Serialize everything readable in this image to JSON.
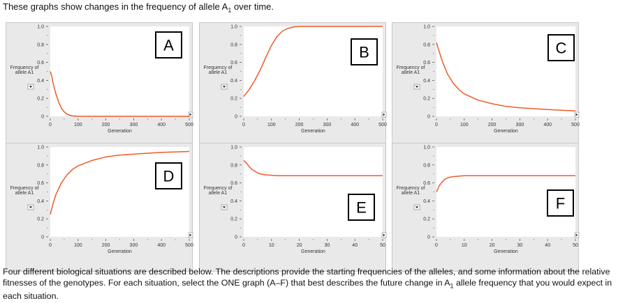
{
  "intro": {
    "pre": "These graphs show changes in the frequency of allele A",
    "sub": "1",
    "post": " over time."
  },
  "outro": {
    "pre": "Four different biological situations are described below. The descriptions provide the starting frequencies of the alleles, and some information about the relative fitnesses of the genotypes. For each situation, select the ONE graph (A–F) that best describes the future change in A",
    "sub": "1",
    "post": " allele frequency that you would expect in each situation."
  },
  "colors": {
    "curve": "#ef5a28",
    "panel_bg": "#e9e9e9",
    "plot_bg": "#ffffff"
  },
  "chart_data": [
    {
      "type": "line",
      "panel_label": "A",
      "ylabel": "Frequency of allele A1",
      "xlabel": "Generation",
      "xlim": [
        0,
        500
      ],
      "ylim": [
        0,
        1
      ],
      "xticks": [
        0,
        100,
        200,
        300,
        400,
        500
      ],
      "yticks": [
        0,
        0.2,
        0.4,
        0.6,
        0.8,
        1.0
      ],
      "ytick_labels": [
        "0",
        "0.2",
        "0.4",
        "0.6",
        "0.8",
        "1.0"
      ],
      "series": [
        {
          "x": [
            0,
            5,
            10,
            20,
            30,
            40,
            50,
            60,
            70,
            80,
            100,
            150,
            200,
            300,
            400,
            500
          ],
          "y": [
            0.5,
            0.45,
            0.37,
            0.25,
            0.16,
            0.09,
            0.05,
            0.025,
            0.012,
            0.005,
            0.001,
            0,
            0,
            0,
            0,
            0
          ]
        }
      ]
    },
    {
      "type": "line",
      "panel_label": "B",
      "ylabel": "Frequency of allele A1",
      "xlabel": "Generation",
      "xlim": [
        0,
        500
      ],
      "ylim": [
        0,
        1
      ],
      "xticks": [
        0,
        100,
        200,
        300,
        400,
        500
      ],
      "yticks": [
        0,
        0.2,
        0.4,
        0.6,
        0.8,
        1.0
      ],
      "ytick_labels": [
        "0",
        "0.2",
        "0.4",
        "0.6",
        "0.8",
        "1.0"
      ],
      "series": [
        {
          "x": [
            0,
            20,
            40,
            60,
            80,
            100,
            120,
            140,
            160,
            180,
            200,
            250,
            300,
            400,
            500
          ],
          "y": [
            0.22,
            0.3,
            0.4,
            0.52,
            0.66,
            0.79,
            0.89,
            0.95,
            0.98,
            0.995,
            1.0,
            1.0,
            1.0,
            1.0,
            1.0
          ]
        }
      ]
    },
    {
      "type": "line",
      "panel_label": "C",
      "ylabel": "Frequency of allele A1",
      "xlabel": "Generation",
      "xlim": [
        0,
        500
      ],
      "ylim": [
        0,
        1
      ],
      "xticks": [
        0,
        100,
        200,
        300,
        400,
        500
      ],
      "yticks": [
        0,
        0.2,
        0.4,
        0.6,
        0.8,
        1.0
      ],
      "ytick_labels": [
        "0",
        "0.2",
        "0.4",
        "0.6",
        "0.8",
        "1.0"
      ],
      "series": [
        {
          "x": [
            0,
            10,
            20,
            40,
            60,
            80,
            100,
            150,
            200,
            250,
            300,
            350,
            400,
            450,
            500
          ],
          "y": [
            0.82,
            0.72,
            0.62,
            0.47,
            0.37,
            0.3,
            0.25,
            0.18,
            0.14,
            0.11,
            0.095,
            0.085,
            0.075,
            0.068,
            0.06
          ]
        }
      ]
    },
    {
      "type": "line",
      "panel_label": "D",
      "ylabel": "Frequency of allele A1",
      "xlabel": "Generation",
      "xlim": [
        0,
        500
      ],
      "ylim": [
        0,
        1
      ],
      "xticks": [
        0,
        100,
        200,
        300,
        400,
        500
      ],
      "yticks": [
        0,
        0.2,
        0.4,
        0.6,
        0.8,
        1.0
      ],
      "ytick_labels": [
        "0",
        "0.2",
        "0.4",
        "0.6",
        "0.8",
        "1.0"
      ],
      "series": [
        {
          "x": [
            0,
            10,
            20,
            40,
            60,
            80,
            100,
            150,
            200,
            250,
            300,
            350,
            400,
            450,
            500
          ],
          "y": [
            0.25,
            0.37,
            0.47,
            0.6,
            0.69,
            0.75,
            0.79,
            0.85,
            0.89,
            0.91,
            0.92,
            0.93,
            0.94,
            0.945,
            0.95
          ]
        }
      ]
    },
    {
      "type": "line",
      "panel_label": "E",
      "ylabel": "Frequency of allele A1",
      "xlabel": "Generation",
      "xlim": [
        0,
        50
      ],
      "ylim": [
        0,
        1
      ],
      "xticks": [
        0,
        10,
        20,
        30,
        40,
        50
      ],
      "yticks": [
        0,
        0.2,
        0.4,
        0.6,
        0.8,
        1.0
      ],
      "ytick_labels": [
        "0",
        "0.2",
        "0.4",
        "0.6",
        "0.8",
        "1.0"
      ],
      "series": [
        {
          "x": [
            0,
            1,
            2,
            3,
            4,
            5,
            6,
            8,
            10,
            12,
            15,
            20,
            30,
            40,
            50
          ],
          "y": [
            0.85,
            0.82,
            0.78,
            0.75,
            0.73,
            0.71,
            0.7,
            0.69,
            0.685,
            0.68,
            0.68,
            0.68,
            0.68,
            0.68,
            0.68
          ]
        }
      ]
    },
    {
      "type": "line",
      "panel_label": "F",
      "ylabel": "Frequency of allele A1",
      "xlabel": "Generation",
      "xlim": [
        0,
        50
      ],
      "ylim": [
        0,
        1
      ],
      "xticks": [
        0,
        10,
        20,
        30,
        40,
        50
      ],
      "yticks": [
        0,
        0.2,
        0.4,
        0.6,
        0.8,
        1.0
      ],
      "ytick_labels": [
        "0",
        "0.2",
        "0.4",
        "0.6",
        "0.8",
        "1.0"
      ],
      "series": [
        {
          "x": [
            0,
            1,
            2,
            3,
            4,
            5,
            6,
            8,
            10,
            15,
            20,
            30,
            40,
            50
          ],
          "y": [
            0.5,
            0.57,
            0.61,
            0.64,
            0.655,
            0.665,
            0.67,
            0.675,
            0.68,
            0.68,
            0.68,
            0.68,
            0.68,
            0.68
          ]
        }
      ]
    }
  ]
}
